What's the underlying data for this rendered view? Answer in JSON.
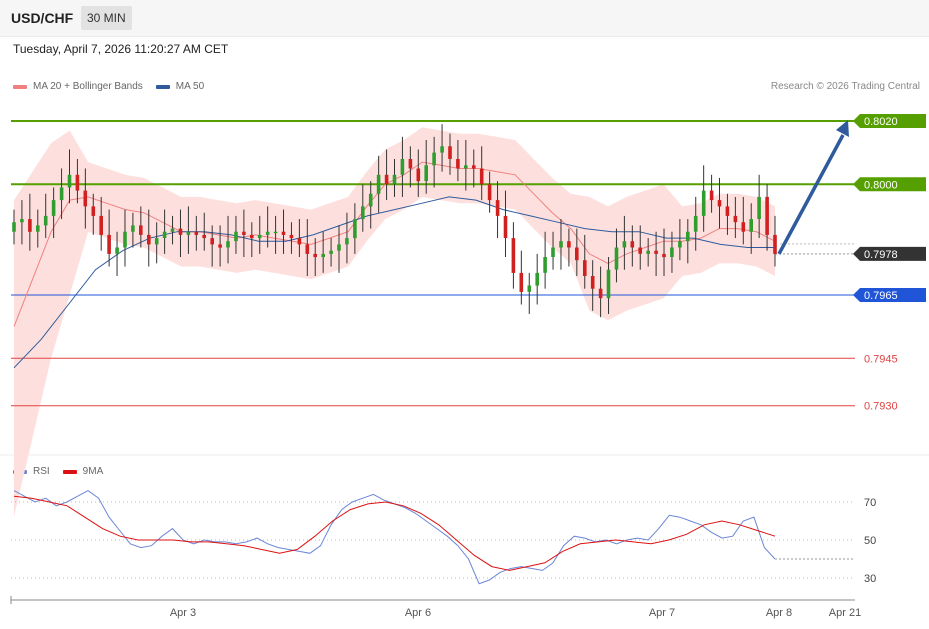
{
  "header": {
    "symbol": "USD/CHF",
    "timeframe": "30 MIN"
  },
  "datetime": "Tuesday, April 7, 2026 11:20:27 AM CET",
  "legend": {
    "bollinger": {
      "label": "MA 20 + Bollinger Bands",
      "color": "#f08080"
    },
    "ma50": {
      "label": "MA 50",
      "color": "#2f5b9c"
    }
  },
  "copyright": "Research © 2026 Trading Central",
  "rsi_legend": {
    "rsi": {
      "label": "RSI",
      "color": "#6b86d6"
    },
    "ma9": {
      "label": "9MA",
      "color": "#dd1111"
    }
  },
  "x_labels": [
    "Apr 3",
    "Apr 6",
    "Apr 7",
    "Apr 8",
    "Apr 21"
  ],
  "chart_data": [
    {
      "type": "candlestick",
      "y_range": [
        0.7915,
        0.804
      ],
      "levels": [
        {
          "label": "0.8020",
          "value": 0.802,
          "kind": "resistance",
          "color": "#55a000"
        },
        {
          "label": "0.8000",
          "value": 0.8,
          "kind": "resistance",
          "color": "#55a000"
        },
        {
          "label": "0.7978",
          "value": 0.7978,
          "kind": "current",
          "color": "#333333"
        },
        {
          "label": "0.7965",
          "value": 0.7965,
          "kind": "support",
          "color": "#1f55d6"
        },
        {
          "label": "0.7945",
          "value": 0.7945,
          "kind": "support",
          "color": "#e04444"
        },
        {
          "label": "0.7930",
          "value": 0.793,
          "kind": "support",
          "color": "#e04444"
        }
      ],
      "close_series": [
        0.7988,
        0.7989,
        0.7985,
        0.7987,
        0.799,
        0.7995,
        0.7999,
        0.8003,
        0.7998,
        0.7993,
        0.799,
        0.7984,
        0.7978,
        0.798,
        0.7985,
        0.7987,
        0.7984,
        0.7981,
        0.7983,
        0.7985,
        0.7986,
        0.7984,
        0.7985,
        0.7984,
        0.7983,
        0.7981,
        0.798,
        0.7982,
        0.7985,
        0.7984,
        0.7983,
        0.7984,
        0.7985,
        0.7985,
        0.7984,
        0.7983,
        0.7981,
        0.7978,
        0.7977,
        0.7978,
        0.7979,
        0.7981,
        0.7983,
        0.7989,
        0.7993,
        0.7997,
        0.8003,
        0.8,
        0.8003,
        0.8008,
        0.8005,
        0.8001,
        0.8006,
        0.801,
        0.8012,
        0.8008,
        0.8005,
        0.8006,
        0.8005,
        0.8,
        0.7995,
        0.799,
        0.7983,
        0.7972,
        0.7966,
        0.7968,
        0.7972,
        0.7977,
        0.798,
        0.7982,
        0.798,
        0.7976,
        0.7971,
        0.7967,
        0.7964,
        0.7973,
        0.798,
        0.7982,
        0.798,
        0.7978,
        0.7979,
        0.7978,
        0.7977,
        0.798,
        0.7982,
        0.7985,
        0.799,
        0.7998,
        0.7995,
        0.7993,
        0.799,
        0.7988,
        0.7985,
        0.7989,
        0.7996,
        0.7984,
        0.7978
      ],
      "ma20": [
        0.7955,
        0.797,
        0.7985,
        0.7995,
        0.7996,
        0.7994,
        0.7992,
        0.7991,
        0.7988,
        0.7985,
        0.7985,
        0.7984,
        0.7983,
        0.7984,
        0.7983,
        0.7982,
        0.7981,
        0.7983,
        0.7985,
        0.7993,
        0.8,
        0.8003,
        0.8007,
        0.8006,
        0.8005,
        0.8005,
        0.8004,
        0.8003,
        0.7997,
        0.7991,
        0.7986,
        0.7978,
        0.7975,
        0.7978,
        0.798,
        0.7982,
        0.7982,
        0.7983,
        0.7986,
        0.7986,
        0.7985,
        0.7982
      ],
      "ma50": [
        0.7942,
        0.7951,
        0.7962,
        0.7973,
        0.7979,
        0.7983,
        0.7985,
        0.7985,
        0.7984,
        0.7982,
        0.7982,
        0.7984,
        0.7987,
        0.799,
        0.7992,
        0.7994,
        0.7996,
        0.7995,
        0.7992,
        0.799,
        0.7988,
        0.7986,
        0.7985,
        0.7985,
        0.7983,
        0.7983,
        0.7981,
        0.798,
        0.798
      ],
      "projection": {
        "from": 0.7978,
        "to": 0.802
      }
    },
    {
      "type": "line",
      "name": "RSI",
      "y_ticks": [
        70,
        50,
        30
      ],
      "series": [
        {
          "name": "RSI",
          "values": [
            76,
            73,
            70,
            72,
            68,
            70,
            73,
            76,
            72,
            62,
            55,
            48,
            46,
            47,
            52,
            56,
            50,
            48,
            50,
            49,
            49,
            48,
            49,
            51,
            48,
            46,
            45,
            44,
            43,
            47,
            58,
            66,
            70,
            72,
            74,
            71,
            69,
            67,
            64,
            60,
            56,
            52,
            47,
            40,
            27,
            29,
            33,
            35,
            36,
            35,
            34,
            38,
            47,
            52,
            51,
            49,
            50,
            48,
            50,
            51,
            50,
            56,
            63,
            62,
            60,
            58,
            54,
            51,
            52,
            60,
            62,
            46,
            40
          ]
        },
        {
          "name": "9MA",
          "values": [
            73,
            72,
            70,
            68,
            62,
            56,
            52,
            50,
            50,
            50,
            49,
            49,
            48,
            47,
            45,
            43,
            45,
            52,
            60,
            66,
            69,
            70,
            68,
            64,
            58,
            50,
            42,
            36,
            34,
            36,
            38,
            44,
            48,
            49,
            50,
            49,
            48,
            50,
            53,
            58,
            60,
            58,
            55,
            52
          ]
        }
      ]
    }
  ]
}
